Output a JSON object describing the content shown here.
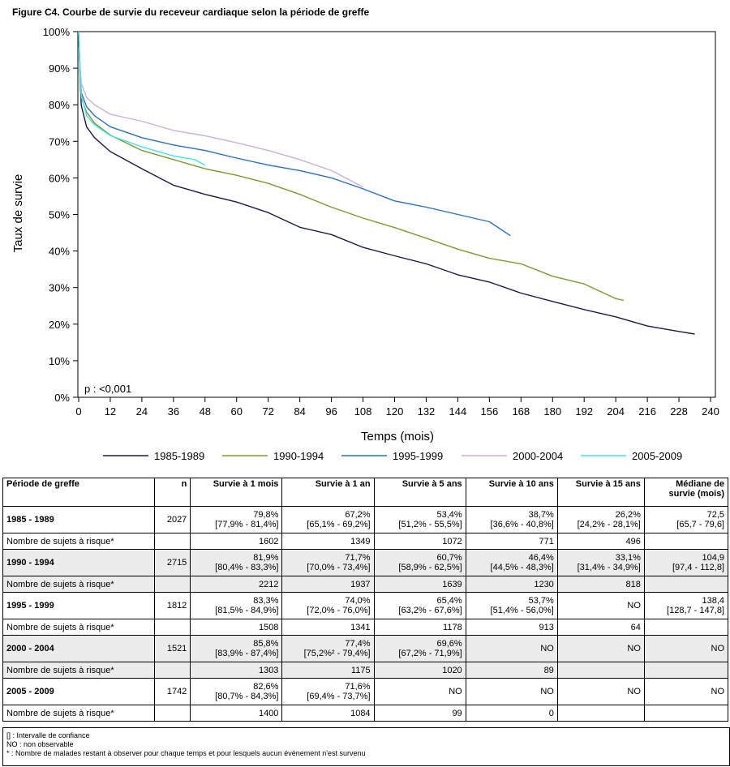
{
  "figure_title": "Figure C4. Courbe de survie du receveur cardiaque selon la période de greffe",
  "chart_data": {
    "type": "line",
    "xlabel": "Temps (mois)",
    "ylabel": "Taux de survie",
    "xlim": [
      0,
      240
    ],
    "ylim": [
      0,
      100
    ],
    "x_ticks": [
      0,
      12,
      24,
      36,
      48,
      60,
      72,
      84,
      96,
      108,
      120,
      132,
      144,
      156,
      168,
      180,
      192,
      204,
      216,
      228,
      240
    ],
    "y_ticks": [
      0,
      10,
      20,
      30,
      40,
      50,
      60,
      70,
      80,
      90,
      100
    ],
    "y_tick_labels": [
      "0%",
      "10%",
      "20%",
      "30%",
      "40%",
      "50%",
      "60%",
      "70%",
      "80%",
      "90%",
      "100%"
    ],
    "annotation": "p : <0,001",
    "grid": false,
    "legend_position": "bottom",
    "series": [
      {
        "name": "1985-1989",
        "color": "#1a1a4e",
        "points": [
          [
            0,
            100
          ],
          [
            0.5,
            88
          ],
          [
            1,
            79.8
          ],
          [
            3,
            74
          ],
          [
            6,
            71
          ],
          [
            12,
            67.2
          ],
          [
            24,
            62.5
          ],
          [
            36,
            58
          ],
          [
            48,
            55.5
          ],
          [
            60,
            53.4
          ],
          [
            72,
            50.5
          ],
          [
            84,
            46.5
          ],
          [
            96,
            44.5
          ],
          [
            108,
            41
          ],
          [
            120,
            38.7
          ],
          [
            132,
            36.5
          ],
          [
            144,
            33.5
          ],
          [
            156,
            31.5
          ],
          [
            168,
            28.5
          ],
          [
            180,
            26.2
          ],
          [
            192,
            24
          ],
          [
            204,
            22
          ],
          [
            216,
            19.5
          ],
          [
            228,
            18
          ],
          [
            234,
            17.3
          ]
        ]
      },
      {
        "name": "1990-1994",
        "color": "#7a9a2e",
        "points": [
          [
            0,
            100
          ],
          [
            0.5,
            89
          ],
          [
            1,
            81.9
          ],
          [
            3,
            78
          ],
          [
            6,
            75
          ],
          [
            12,
            71.7
          ],
          [
            24,
            67.5
          ],
          [
            36,
            65
          ],
          [
            48,
            62.5
          ],
          [
            60,
            60.7
          ],
          [
            72,
            58.5
          ],
          [
            84,
            55.5
          ],
          [
            96,
            52
          ],
          [
            108,
            49
          ],
          [
            120,
            46.4
          ],
          [
            132,
            43.5
          ],
          [
            144,
            40.5
          ],
          [
            156,
            38
          ],
          [
            168,
            36.5
          ],
          [
            180,
            33.1
          ],
          [
            192,
            31
          ],
          [
            204,
            27
          ],
          [
            207,
            26.5
          ]
        ]
      },
      {
        "name": "1995-1999",
        "color": "#2a6fc9",
        "points": [
          [
            0,
            100
          ],
          [
            0.5,
            90
          ],
          [
            1,
            83.3
          ],
          [
            3,
            79.5
          ],
          [
            6,
            77
          ],
          [
            12,
            74
          ],
          [
            24,
            71
          ],
          [
            36,
            69
          ],
          [
            48,
            67.5
          ],
          [
            60,
            65.4
          ],
          [
            72,
            63.5
          ],
          [
            84,
            62
          ],
          [
            96,
            60
          ],
          [
            108,
            57
          ],
          [
            120,
            53.7
          ],
          [
            132,
            52
          ],
          [
            144,
            50
          ],
          [
            156,
            48
          ],
          [
            164,
            44.2
          ]
        ]
      },
      {
        "name": "2000-2004",
        "color": "#c8b2dc",
        "points": [
          [
            0,
            100
          ],
          [
            0.5,
            91
          ],
          [
            1,
            85.8
          ],
          [
            3,
            82
          ],
          [
            6,
            80
          ],
          [
            12,
            77.4
          ],
          [
            24,
            75.5
          ],
          [
            36,
            73
          ],
          [
            48,
            71.5
          ],
          [
            60,
            69.6
          ],
          [
            72,
            67.5
          ],
          [
            84,
            65
          ],
          [
            96,
            62
          ],
          [
            104,
            59
          ],
          [
            108,
            57.5
          ]
        ]
      },
      {
        "name": "2005-2009",
        "color": "#3ee6e6",
        "points": [
          [
            0,
            100
          ],
          [
            0.5,
            89
          ],
          [
            1,
            82.6
          ],
          [
            3,
            77
          ],
          [
            6,
            74.5
          ],
          [
            12,
            71.6
          ],
          [
            24,
            68.5
          ],
          [
            36,
            66
          ],
          [
            44,
            65
          ],
          [
            48,
            63.5
          ]
        ]
      }
    ]
  },
  "table": {
    "headers": [
      "Période de greffe",
      "n",
      "Survie à 1 mois",
      "Survie à 1 an",
      "Survie à 5 ans",
      "Survie à 10 ans",
      "Survie à 15 ans",
      "Médiane de survie (mois)"
    ],
    "risk_label": "Nombre de sujets à risque*",
    "rows": [
      {
        "period": "1985 - 1989",
        "n": "2027",
        "vals": [
          "79,8%",
          "67,2%",
          "53,4%",
          "38,7%",
          "26,2%",
          "72,5"
        ],
        "ci": [
          "[77,9% - 81,4%]",
          "[65,1% - 69,2%]",
          "[51,2% - 55,5%]",
          "[36,6% - 40,8%]",
          "[24,2% - 28,1%]",
          "[65,7 - 79,6]"
        ],
        "risk": [
          "1602",
          "1349",
          "1072",
          "771",
          "496",
          ""
        ]
      },
      {
        "period": "1990 - 1994",
        "n": "2715",
        "vals": [
          "81,9%",
          "71,7%",
          "60,7%",
          "46,4%",
          "33,1%",
          "104,9"
        ],
        "ci": [
          "[80,4% - 83,3%]",
          "[70,0% - 73,4%]",
          "[58,9% - 62,5%]",
          "[44,5% - 48,3%]",
          "[31,4% - 34,9%]",
          "[97,4 - 112,8]"
        ],
        "risk": [
          "2212",
          "1937",
          "1639",
          "1230",
          "818",
          ""
        ]
      },
      {
        "period": "1995 - 1999",
        "n": "1812",
        "vals": [
          "83,3%",
          "74,0%",
          "65,4%",
          "53,7%",
          "NO",
          "138,4"
        ],
        "ci": [
          "[81,5% - 84,9%]",
          "[72,0% - 76,0%]",
          "[63,2% - 67,6%]",
          "[51,4% - 56,0%]",
          "",
          "[128,7 - 147,8]"
        ],
        "risk": [
          "1508",
          "1341",
          "1178",
          "913",
          "64",
          ""
        ]
      },
      {
        "period": "2000 - 2004",
        "n": "1521",
        "vals": [
          "85,8%",
          "77,4%",
          "69,6%",
          "NO",
          "NO",
          "NO"
        ],
        "ci": [
          "[83,9% - 87,4%]",
          "[75,2%² - 79,4%]",
          "[67,2% - 71,9%]",
          "",
          "",
          ""
        ],
        "risk": [
          "1303",
          "1175",
          "1020",
          "89",
          "",
          ""
        ]
      },
      {
        "period": "2005 - 2009",
        "n": "1742",
        "vals": [
          "82,6%",
          "71,6%",
          "NO",
          "NO",
          "NO",
          "NO"
        ],
        "ci": [
          "[80,7% - 84,3%]",
          "[69,4% - 73,7%]",
          "",
          "",
          "",
          ""
        ],
        "risk": [
          "1400",
          "1084",
          "99",
          "0",
          "",
          ""
        ]
      }
    ]
  },
  "notes": [
    "[] : Intervalle de confiance",
    "NO : non observable",
    "* : Nombre de malades restant à observer pour chaque temps et pour lesquels aucun évènement n'est survenu"
  ]
}
